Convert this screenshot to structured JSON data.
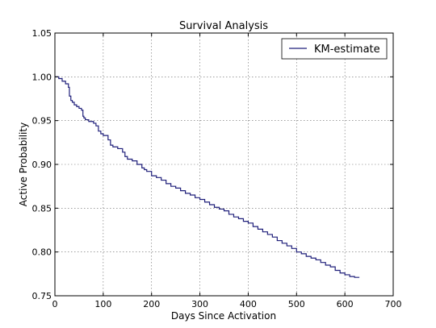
{
  "chart_data": {
    "type": "line",
    "title": "Survival Analysis",
    "xlabel": "Days Since Activation",
    "ylabel": "Active Probability",
    "xlim": [
      0,
      700
    ],
    "ylim": [
      0.75,
      1.05
    ],
    "xticks": [
      "0",
      "100",
      "200",
      "300",
      "400",
      "500",
      "600",
      "700"
    ],
    "yticks": [
      "0.75",
      "0.80",
      "0.85",
      "0.90",
      "0.95",
      "1.00",
      "1.05"
    ],
    "grid": true,
    "legend_position": "top-right",
    "series": [
      {
        "name": "KM-estimate",
        "color": "#1f1f7a",
        "step": true,
        "x": [
          0,
          8,
          15,
          22,
          28,
          30,
          33,
          36,
          40,
          45,
          50,
          55,
          58,
          60,
          63,
          70,
          80,
          85,
          90,
          95,
          100,
          110,
          115,
          120,
          130,
          140,
          145,
          150,
          160,
          170,
          180,
          185,
          190,
          200,
          210,
          220,
          230,
          240,
          250,
          260,
          270,
          280,
          290,
          300,
          310,
          320,
          330,
          340,
          350,
          360,
          370,
          380,
          390,
          400,
          410,
          420,
          430,
          440,
          450,
          460,
          470,
          480,
          490,
          500,
          510,
          520,
          530,
          540,
          550,
          560,
          570,
          580,
          590,
          600,
          610,
          620,
          630
        ],
        "y": [
          1.0,
          0.998,
          0.995,
          0.992,
          0.988,
          0.978,
          0.973,
          0.971,
          0.968,
          0.966,
          0.964,
          0.962,
          0.955,
          0.953,
          0.951,
          0.949,
          0.947,
          0.944,
          0.938,
          0.935,
          0.933,
          0.928,
          0.922,
          0.92,
          0.918,
          0.914,
          0.909,
          0.906,
          0.904,
          0.9,
          0.896,
          0.894,
          0.892,
          0.887,
          0.885,
          0.882,
          0.878,
          0.875,
          0.873,
          0.87,
          0.867,
          0.865,
          0.862,
          0.86,
          0.857,
          0.854,
          0.851,
          0.849,
          0.847,
          0.843,
          0.84,
          0.838,
          0.835,
          0.833,
          0.829,
          0.826,
          0.823,
          0.82,
          0.817,
          0.813,
          0.81,
          0.807,
          0.804,
          0.8,
          0.798,
          0.795,
          0.793,
          0.791,
          0.788,
          0.785,
          0.783,
          0.779,
          0.776,
          0.774,
          0.772,
          0.771,
          0.771
        ]
      }
    ]
  }
}
